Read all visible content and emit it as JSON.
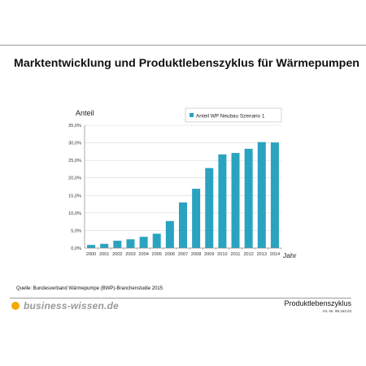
{
  "page": {
    "title": "Marktentwicklung und Produktlebenszyklus für Wärmepumpen",
    "source": "Quelle: Bundesverband Wärmepumpe (BWP)-Branchenstudie 2015",
    "brand": "business-wissen.de",
    "footer_title": "Produktlebenszyklus",
    "article_no": "Art.-Nr. 99.163.03"
  },
  "colors": {
    "bar": "#2aa3c0",
    "brand_dot": "#f5a800",
    "grid": "#d9d9d9",
    "axis": "#888888"
  },
  "chart_data": {
    "type": "bar",
    "ylabel": "Anteil",
    "xlabel": "Jahr",
    "categories": [
      "2000",
      "2001",
      "2002",
      "2003",
      "2004",
      "2005",
      "2006",
      "2007",
      "2008",
      "2009",
      "2010",
      "2011",
      "2012",
      "2013",
      "2014"
    ],
    "series": [
      {
        "name": "Anteil WP Neubau Szenario 1",
        "values": [
          0.9,
          1.2,
          2.1,
          2.5,
          3.2,
          4.1,
          7.7,
          13.0,
          16.9,
          22.8,
          26.7,
          27.1,
          28.3,
          30.2,
          30.1
        ]
      }
    ],
    "ylim": [
      0,
      35
    ],
    "yticks": [
      0,
      5,
      10,
      15,
      20,
      25,
      30,
      35
    ],
    "ytick_labels": [
      "0,0%",
      "5,0%",
      "10,0%",
      "15,0%",
      "20,0%",
      "25,0%",
      "30,0%",
      "35,0%"
    ],
    "grid": true,
    "legend": "top-right"
  }
}
